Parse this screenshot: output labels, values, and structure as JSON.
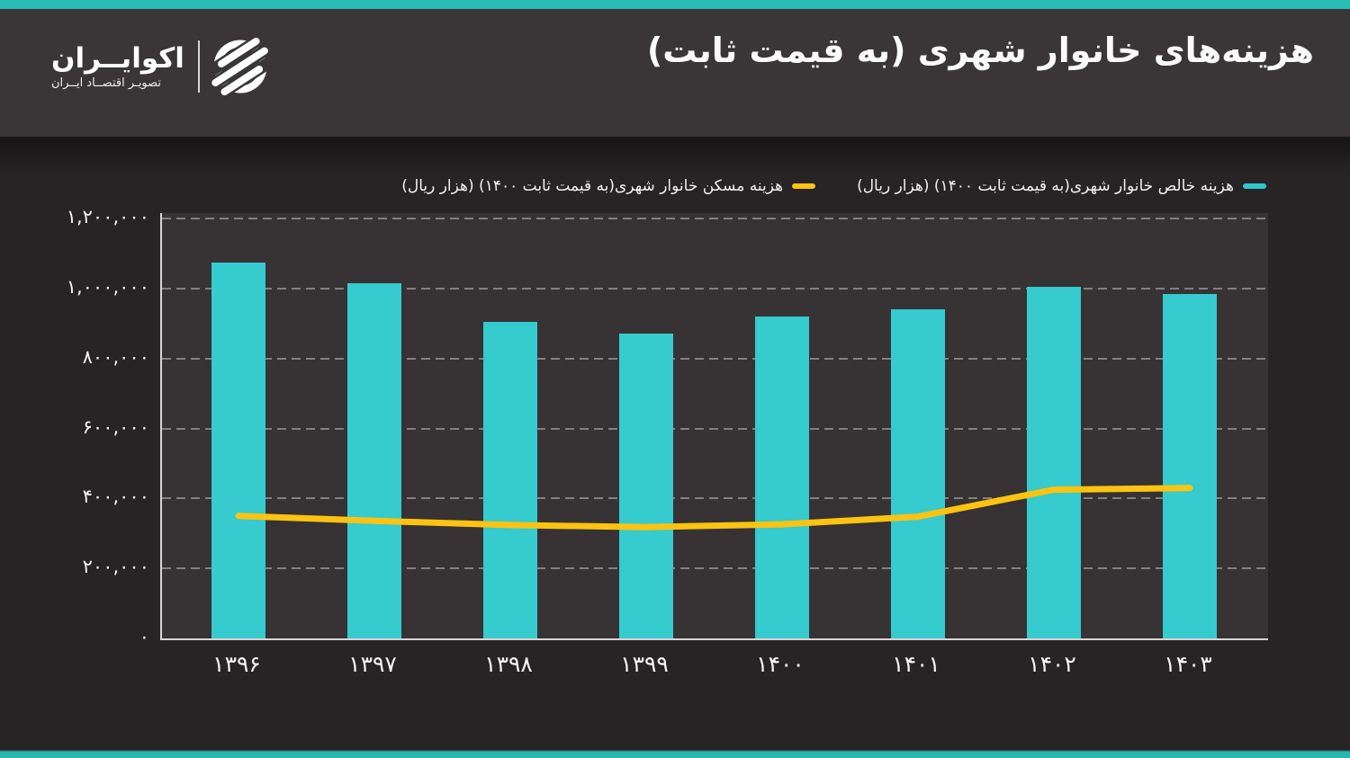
{
  "header": {
    "title": "هزینه‌های خانوار شهری (به قیمت ثابت)",
    "logo": {
      "name": "اکوایــران",
      "tagline": "تصویـر اقتصــاد ایــران"
    }
  },
  "legend": [
    {
      "label": "هزینه خالص خانوار شهری(به قیمت ثابت ۱۴۰۰) (هزار ریال)",
      "color": "#2fc7cb",
      "series": "bars"
    },
    {
      "label": "هزینه مسکن خانوار شهری(به قیمت ثابت ۱۴۰۰) (هزار ریال)",
      "color": "#fdc311",
      "series": "line"
    }
  ],
  "chart_data": {
    "type": "bar",
    "title": "هزینه‌های خانوار شهری (به قیمت ثابت)",
    "categories": [
      "۱۳۹۶",
      "۱۳۹۷",
      "۱۳۹۸",
      "۱۳۹۹",
      "۱۴۰۰",
      "۱۴۰۱",
      "۱۴۰۲",
      "۱۴۰۳"
    ],
    "series": [
      {
        "name": "هزینه خالص خانوار شهری(به قیمت ثابت ۱۴۰۰) (هزار ریال)",
        "type": "bar",
        "color": "#35cbcf",
        "values": [
          1075000,
          1015000,
          905000,
          870000,
          920000,
          940000,
          1005000,
          985000
        ]
      },
      {
        "name": "هزینه مسکن خانوار شهری(به قیمت ثابت ۱۴۰۰) (هزار ریال)",
        "type": "line",
        "color": "#fdc311",
        "values": [
          350000,
          336000,
          324000,
          318000,
          326000,
          348000,
          425000,
          430000
        ]
      }
    ],
    "xlabel": "",
    "ylabel": "",
    "ylim": [
      0,
      1200000
    ],
    "yticks": [
      {
        "value": 0,
        "label": "۰"
      },
      {
        "value": 200000,
        "label": "۲۰۰,۰۰۰"
      },
      {
        "value": 400000,
        "label": "۴۰۰,۰۰۰"
      },
      {
        "value": 600000,
        "label": "۶۰۰,۰۰۰"
      },
      {
        "value": 800000,
        "label": "۸۰۰,۰۰۰"
      },
      {
        "value": 1000000,
        "label": "۱,۰۰۰,۰۰۰"
      },
      {
        "value": 1200000,
        "label": "۱,۲۰۰,۰۰۰"
      }
    ],
    "grid": "horizontal-dashed",
    "legend_position": "top-right"
  },
  "colors": {
    "accent_strip": "#2abcb6",
    "header_bg": "#3a3637",
    "page_bg": "#282425",
    "plot_bg": "#373233",
    "bar_teal": "#35cbcf",
    "line_yellow": "#fdc311",
    "grid": "#918e8f",
    "axis": "#d7d5d5",
    "text": "#f5f3f3"
  }
}
